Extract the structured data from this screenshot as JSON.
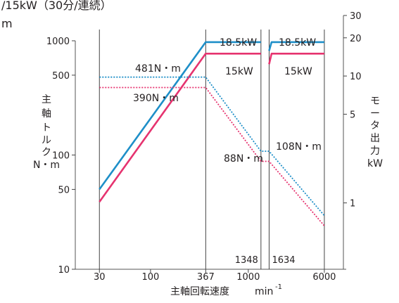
{
  "chart_data": {
    "type": "line",
    "title_fragment": "/15kW（30分/連続）",
    "header_unit_fragment": "m",
    "xlabel": "主軸回転速度",
    "xunit_base": "min",
    "xunit_exp": "-1",
    "ylabel_left": [
      "主",
      "軸",
      "ト",
      "ル",
      "ク",
      "N・m"
    ],
    "ylabel_right": [
      "モ",
      "ー",
      "タ",
      "出",
      "力",
      "kW"
    ],
    "x_scale": "log",
    "x_range": [
      17,
      9400
    ],
    "x_ticks": [
      {
        "value": 30,
        "label": "30"
      },
      {
        "value": 100,
        "label": "100"
      },
      {
        "value": 367,
        "label": "367"
      },
      {
        "value": 1000,
        "label": "1000"
      },
      {
        "value": 6000,
        "label": "6000"
      }
    ],
    "y_left_scale": "log",
    "y_left_range": [
      10,
      1000
    ],
    "y_left_ticks": [
      {
        "value": 10,
        "label": "10"
      },
      {
        "value": 50,
        "label": "50"
      },
      {
        "value": 100,
        "label": "100"
      },
      {
        "value": 500,
        "label": "500"
      },
      {
        "value": 1000,
        "label": "1000"
      }
    ],
    "y_right_scale": "log",
    "y_right_range": [
      0.3,
      30
    ],
    "y_right_ticks": [
      {
        "value": 1,
        "label": "1"
      },
      {
        "value": 5,
        "label": "5"
      },
      {
        "value": 10,
        "label": "10"
      },
      {
        "value": 20,
        "label": "20"
      },
      {
        "value": 30,
        "label": "30"
      }
    ],
    "vertical_lines": [
      30,
      367,
      1348,
      1634,
      6000
    ],
    "speed_labels": [
      {
        "value": 1348,
        "label": "1348"
      },
      {
        "value": 1634,
        "label": "1634"
      }
    ],
    "series": [
      {
        "name": "18.5kW",
        "kind": "power",
        "color": "#1e8fc8",
        "points": [
          [
            30,
            1.28
          ],
          [
            367,
            18.5
          ],
          [
            1348,
            18.5
          ]
        ],
        "points2": [
          [
            1634,
            15.8
          ],
          [
            1730,
            18.5
          ],
          [
            6000,
            18.5
          ]
        ]
      },
      {
        "name": "15kW",
        "kind": "power",
        "color": "#e6336f",
        "points": [
          [
            30,
            1.02
          ],
          [
            367,
            15
          ],
          [
            1348,
            15
          ]
        ],
        "points2": [
          [
            1634,
            12.4
          ],
          [
            1730,
            15
          ],
          [
            6000,
            15
          ]
        ]
      },
      {
        "name": "481N・m",
        "kind": "torque",
        "color": "#1e8fc8",
        "points": [
          [
            30,
            481
          ],
          [
            367,
            481
          ],
          [
            1348,
            108
          ],
          [
            1634,
            108
          ],
          [
            6000,
            29.5
          ]
        ]
      },
      {
        "name": "390N・m",
        "kind": "torque",
        "color": "#e6336f",
        "points": [
          [
            30,
            390
          ],
          [
            367,
            390
          ],
          [
            1348,
            88
          ],
          [
            1634,
            88
          ],
          [
            6000,
            24
          ]
        ]
      }
    ],
    "annotations": [
      {
        "text": "18.5kW",
        "near": "power-blue"
      },
      {
        "text": "18.5kW",
        "near": "power-blue-right"
      },
      {
        "text": "15kW",
        "near": "power-pink"
      },
      {
        "text": "15kW",
        "near": "power-pink-right"
      },
      {
        "text": "481N・m",
        "near": "torque-blue"
      },
      {
        "text": "390N・m",
        "near": "torque-pink"
      },
      {
        "text": "108N・m",
        "near": "torque-blue-mid"
      },
      {
        "text": "88N・m",
        "near": "torque-pink-mid"
      }
    ]
  }
}
